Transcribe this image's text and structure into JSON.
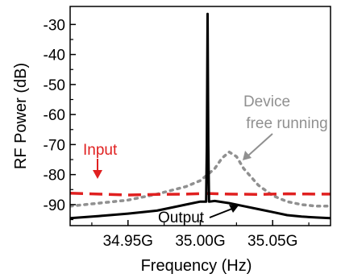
{
  "chart_data": {
    "type": "line",
    "xlabel": "Frequency (Hz)",
    "ylabel": "RF Power (dB)",
    "xlim": [
      34.91,
      35.09
    ],
    "ylim": [
      -97,
      -24
    ],
    "x_ticks": [
      34.95,
      35.0,
      35.05
    ],
    "x_tick_labels": [
      "34.95G",
      "35.00G",
      "35.05G"
    ],
    "y_ticks": [
      -30,
      -40,
      -50,
      -60,
      -70,
      -80,
      -90
    ],
    "y_tick_labels": [
      "-30",
      "-40",
      "-50",
      "-60",
      "-70",
      "-80",
      "-90"
    ],
    "grid": false,
    "series": [
      {
        "name": "Input",
        "color": "#e02020",
        "style": "dashed",
        "x": [
          34.91,
          34.93,
          34.95,
          34.97,
          34.99,
          35.005,
          35.02,
          35.04,
          35.06,
          35.08,
          35.09
        ],
        "y": [
          -86.2,
          -86.5,
          -86.8,
          -86.6,
          -86.5,
          -86.3,
          -86.5,
          -86.6,
          -86.4,
          -86.5,
          -86.5
        ]
      },
      {
        "name": "Device free running",
        "color": "#909090",
        "style": "dotted",
        "x": [
          34.91,
          34.93,
          34.95,
          34.97,
          34.99,
          35.0,
          35.01,
          35.015,
          35.02,
          35.025,
          35.03,
          35.04,
          35.05,
          35.06,
          35.07,
          35.08,
          35.09
        ],
        "y": [
          -90.5,
          -89.5,
          -88.5,
          -86.5,
          -84.0,
          -82.0,
          -78.0,
          -74.5,
          -72.5,
          -74.0,
          -78.0,
          -83.5,
          -87.0,
          -89.0,
          -90.0,
          -90.5,
          -90.5
        ]
      },
      {
        "name": "Output",
        "color": "#000000",
        "style": "solid",
        "x": [
          34.91,
          34.93,
          34.95,
          34.97,
          34.99,
          35.0,
          35.004,
          35.0045,
          35.005,
          35.0055,
          35.006,
          35.01,
          35.02,
          35.03,
          35.04,
          35.05,
          35.06,
          35.07,
          35.08,
          35.09
        ],
        "y": [
          -94.5,
          -93.8,
          -93.0,
          -92.0,
          -90.0,
          -89.0,
          -89.0,
          -70.0,
          -26.5,
          -70.0,
          -89.0,
          -88.8,
          -89.5,
          -90.5,
          -91.5,
          -92.5,
          -93.5,
          -94.0,
          -94.3,
          -94.5
        ]
      }
    ],
    "annotations": [
      {
        "lines": [
          "Input"
        ],
        "color": "#e02020"
      },
      {
        "lines": [
          "Device",
          "free running"
        ],
        "color": "#909090"
      },
      {
        "lines": [
          "Output"
        ],
        "color": "#000000"
      }
    ]
  }
}
